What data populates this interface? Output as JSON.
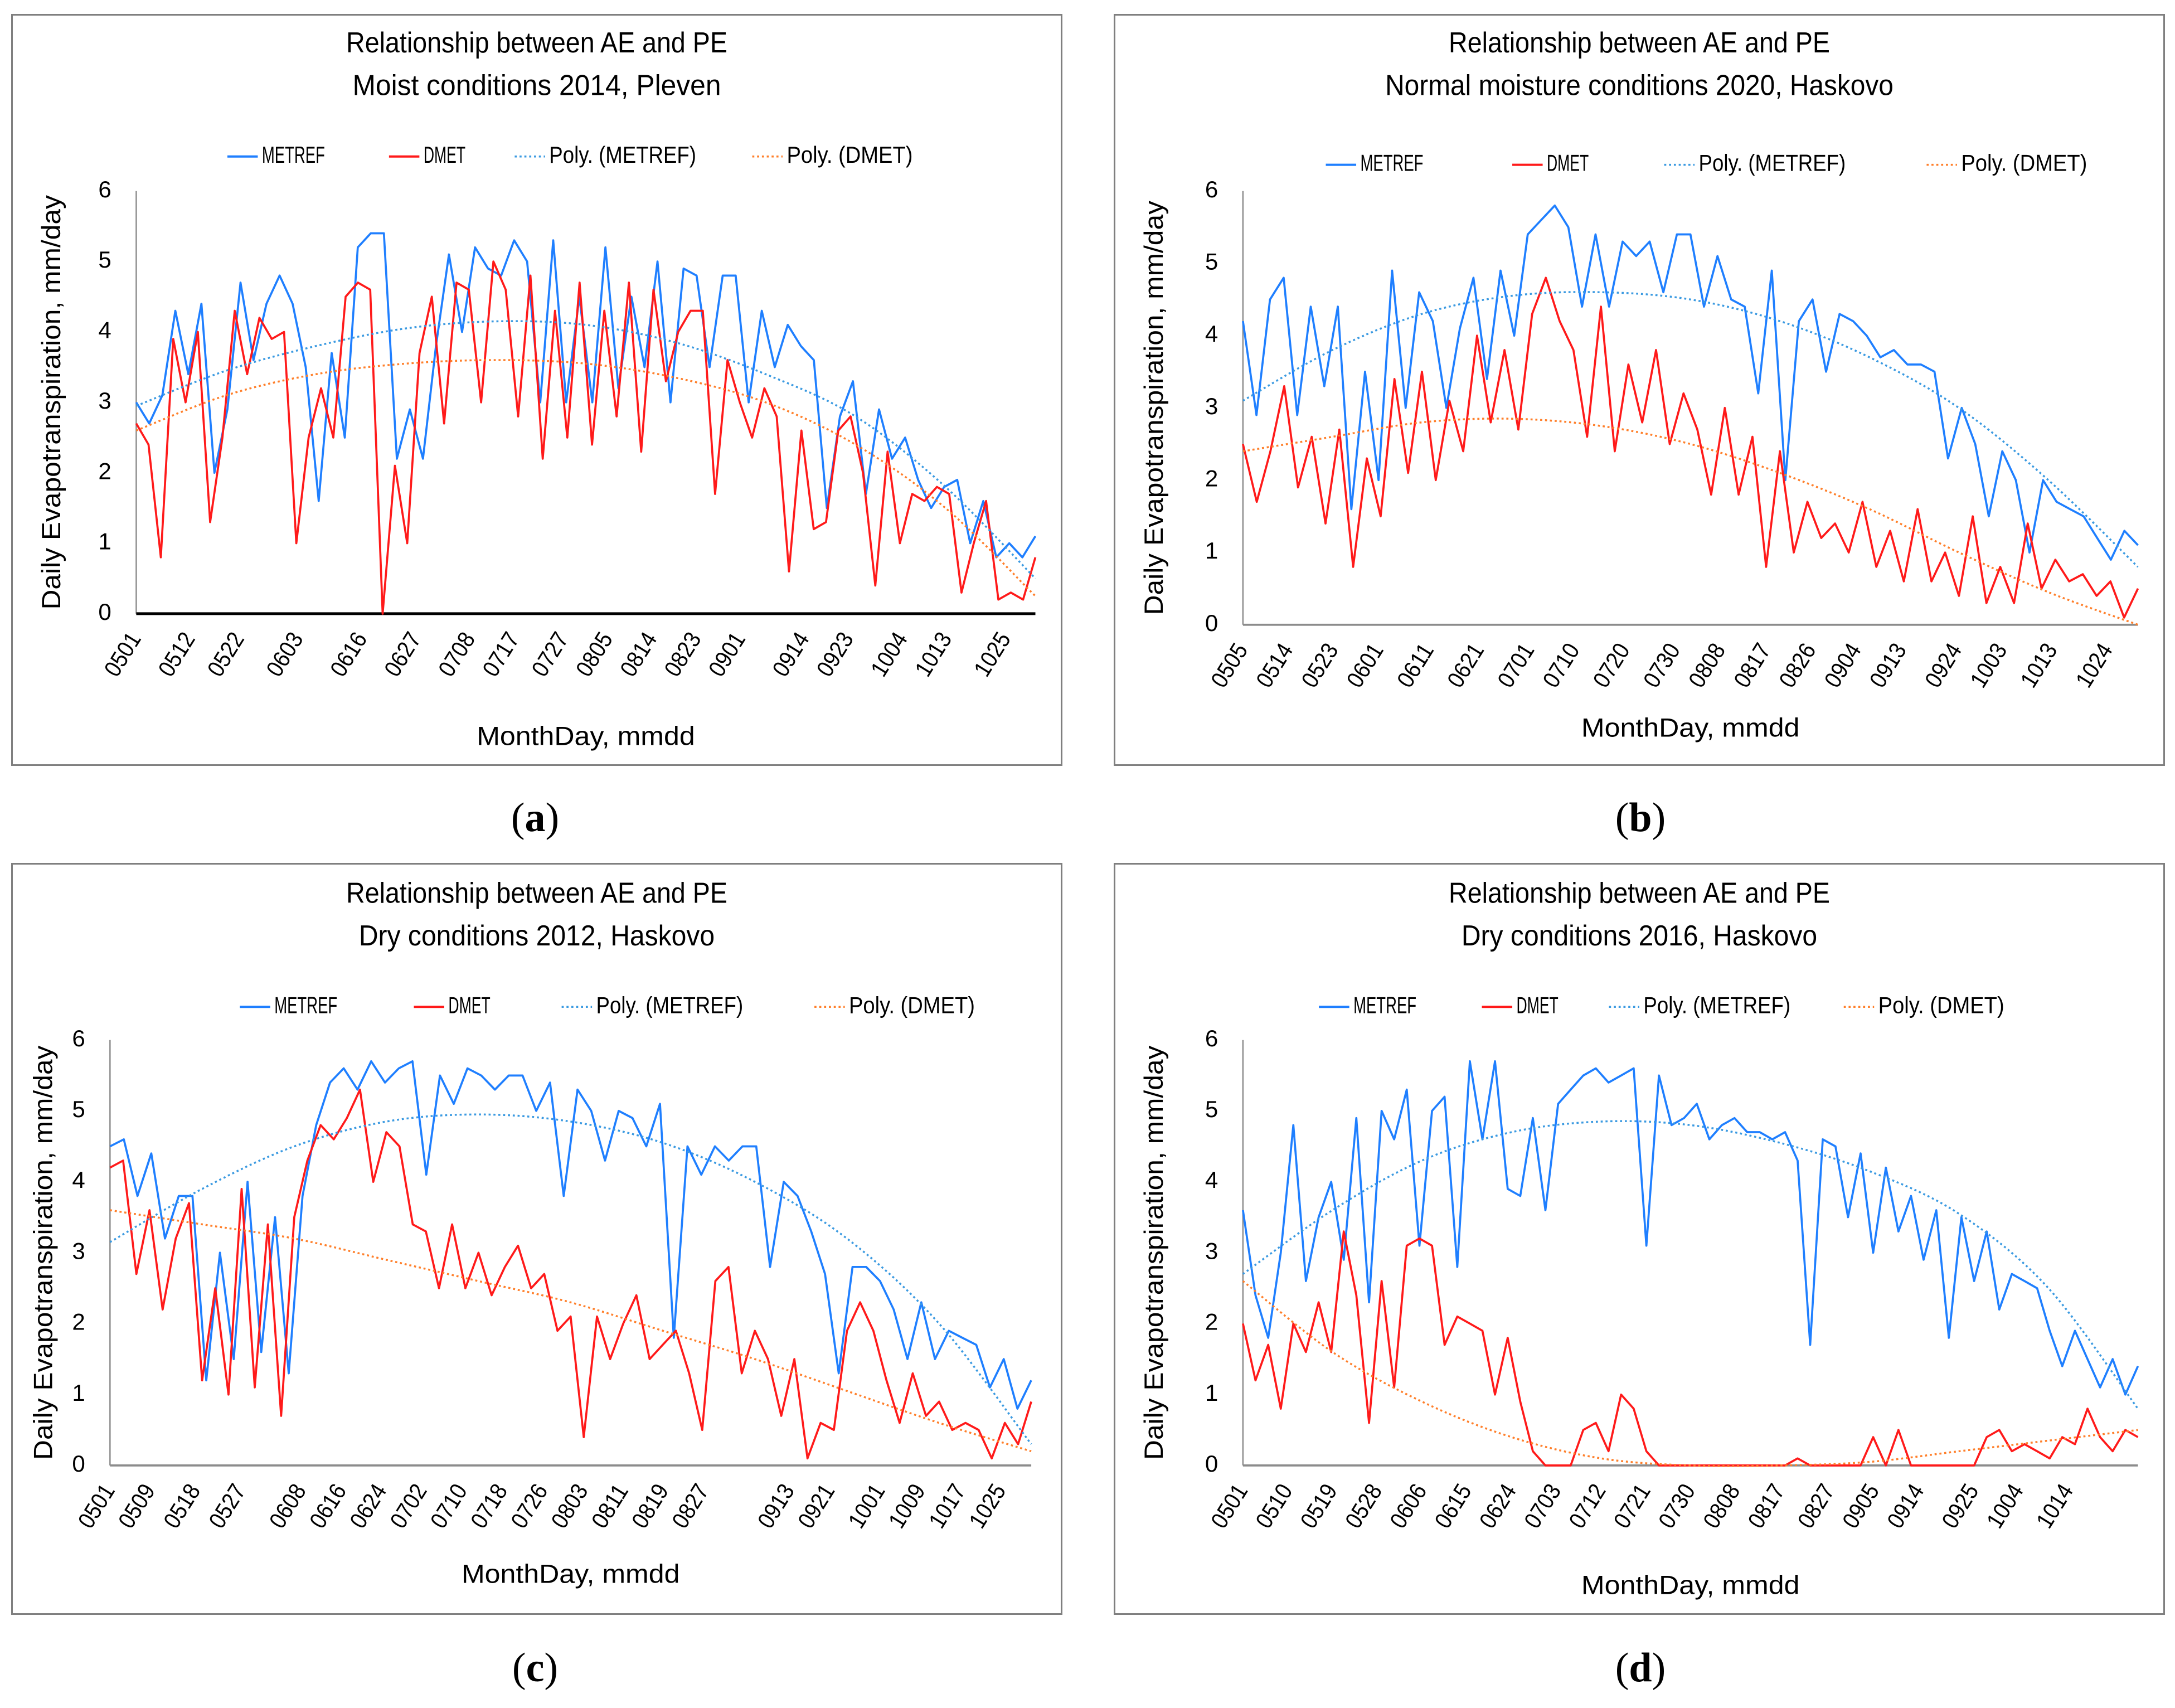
{
  "panel_labels": [
    "a",
    "b",
    "c",
    "d"
  ],
  "chart_data": [
    {
      "type": "line",
      "title": [
        "Relationship between AE and PE",
        "Moist conditions 2014, Pleven"
      ],
      "xlabel": "MonthDay, mmdd",
      "ylabel": "Daily Evapotranspiration, mm/day",
      "ylim": [
        0,
        6
      ],
      "yticks": [
        "0",
        "1",
        "2",
        "3",
        "4",
        "5",
        "6"
      ],
      "x_range": [
        "0501",
        "1031"
      ],
      "xticks": [
        "0501",
        "0512",
        "0522",
        "0603",
        "0616",
        "0627",
        "0708",
        "0717",
        "0727",
        "0805",
        "0814",
        "0823",
        "0901",
        "0914",
        "0923",
        "1004",
        "1013",
        "1025"
      ],
      "legend": [
        "METREF",
        "DMET",
        "Poly. (METREF)",
        "Poly. (DMET)"
      ],
      "colors": {
        "metref": "#1f7fff",
        "dmet": "#ff1a1a",
        "poly_metref": "#3b9ae1",
        "poly_dmet": "#ff7f2a"
      },
      "series": [
        {
          "name": "METREF",
          "values": [
            3.0,
            2.7,
            3.1,
            4.3,
            3.4,
            4.4,
            2.0,
            2.9,
            4.7,
            3.6,
            4.4,
            4.8,
            4.4,
            3.5,
            1.6,
            3.7,
            2.5,
            5.2,
            5.4,
            5.4,
            2.2,
            2.9,
            2.2,
            3.8,
            5.1,
            4.0,
            5.2,
            4.9,
            4.8,
            5.3,
            5.0,
            3.0,
            5.3,
            3.0,
            4.5,
            3.0,
            5.2,
            3.2,
            4.5,
            3.5,
            5.0,
            3.0,
            4.9,
            4.8,
            3.5,
            4.8,
            4.8,
            3.0,
            4.3,
            3.5,
            4.1,
            3.8,
            3.6,
            1.5,
            2.8,
            3.3,
            1.7,
            2.9,
            2.2,
            2.5,
            1.9,
            1.5,
            1.8,
            1.9,
            1.0,
            1.6,
            0.8,
            1.0,
            0.8,
            1.1
          ]
        },
        {
          "name": "DMET",
          "values": [
            2.7,
            2.4,
            0.8,
            3.9,
            3.0,
            4.0,
            1.3,
            2.5,
            4.3,
            3.4,
            4.2,
            3.9,
            4.0,
            1.0,
            2.5,
            3.2,
            2.5,
            4.5,
            4.7,
            4.6,
            0.0,
            2.1,
            1.0,
            3.7,
            4.5,
            2.7,
            4.7,
            4.6,
            3.0,
            5.0,
            4.6,
            2.8,
            4.8,
            2.2,
            4.3,
            2.5,
            4.7,
            2.4,
            4.3,
            2.8,
            4.7,
            2.3,
            4.6,
            3.3,
            4.0,
            4.3,
            4.3,
            1.7,
            3.6,
            3.0,
            2.5,
            3.2,
            2.8,
            0.6,
            2.6,
            1.2,
            1.3,
            2.6,
            2.8,
            2.0,
            0.4,
            2.3,
            1.0,
            1.7,
            1.6,
            1.8,
            1.7,
            0.3,
            1.0,
            1.6,
            0.2,
            0.3,
            0.2,
            0.8
          ]
        },
        {
          "name": "Poly. (METREF)",
          "values": [
            2.95,
            3.45,
            3.8,
            4.05,
            4.15,
            4.1,
            3.85,
            3.4,
            2.8,
            1.8,
            0.5
          ]
        },
        {
          "name": "Poly. (DMET)",
          "values": [
            2.6,
            3.1,
            3.4,
            3.55,
            3.6,
            3.55,
            3.35,
            3.0,
            2.4,
            1.5,
            0.25
          ]
        }
      ]
    },
    {
      "type": "line",
      "title": [
        "Relationship between AE and PE",
        "Normal moisture conditions 2020, Haskovo"
      ],
      "xlabel": "MonthDay, mmdd",
      "ylabel": "Daily Evapotranspiration, mm/day",
      "ylim": [
        0,
        6
      ],
      "yticks": [
        "0",
        "1",
        "2",
        "3",
        "4",
        "5",
        "6"
      ],
      "x_range": [
        "0505",
        "1030"
      ],
      "xticks": [
        "0505",
        "0514",
        "0523",
        "0601",
        "0611",
        "0621",
        "0701",
        "0710",
        "0720",
        "0730",
        "0808",
        "0817",
        "0826",
        "0904",
        "0913",
        "0924",
        "1003",
        "1013",
        "1024"
      ],
      "legend": [
        "METREF",
        "DMET",
        "Poly. (METREF)",
        "Poly. (DMET)"
      ],
      "colors": {
        "metref": "#1f7fff",
        "dmet": "#ff1a1a",
        "poly_metref": "#3b9ae1",
        "poly_dmet": "#ff7f2a"
      },
      "series": [
        {
          "name": "METREF",
          "values": [
            4.2,
            2.9,
            4.5,
            4.8,
            2.9,
            4.4,
            3.3,
            4.4,
            1.6,
            3.5,
            2.0,
            4.9,
            3.0,
            4.6,
            4.2,
            3.0,
            4.1,
            4.8,
            3.4,
            4.9,
            4.0,
            5.4,
            5.6,
            5.8,
            5.5,
            4.4,
            5.4,
            4.4,
            5.3,
            5.1,
            5.3,
            4.6,
            5.4,
            5.4,
            4.4,
            5.1,
            4.5,
            4.4,
            3.2,
            4.9,
            2.0,
            4.2,
            4.5,
            3.5,
            4.3,
            4.2,
            4.0,
            3.7,
            3.8,
            3.6,
            3.6,
            3.5,
            2.3,
            3.0,
            2.5,
            1.5,
            2.4,
            2.0,
            1.0,
            2.0,
            1.7,
            1.6,
            1.5,
            1.2,
            0.9,
            1.3,
            1.1
          ]
        },
        {
          "name": "DMET",
          "values": [
            2.5,
            1.7,
            2.4,
            3.3,
            1.9,
            2.6,
            1.4,
            2.7,
            0.8,
            2.3,
            1.5,
            3.4,
            2.1,
            3.5,
            2.0,
            3.1,
            2.4,
            4.0,
            2.8,
            3.8,
            2.7,
            4.3,
            4.8,
            4.2,
            3.8,
            2.6,
            4.4,
            2.4,
            3.6,
            2.8,
            3.8,
            2.5,
            3.2,
            2.7,
            1.8,
            3.0,
            1.8,
            2.6,
            0.8,
            2.4,
            1.0,
            1.7,
            1.2,
            1.4,
            1.0,
            1.7,
            0.8,
            1.3,
            0.6,
            1.6,
            0.6,
            1.0,
            0.4,
            1.5,
            0.3,
            0.8,
            0.3,
            1.4,
            0.5,
            0.9,
            0.6,
            0.7,
            0.4,
            0.6,
            0.1,
            0.5
          ]
        },
        {
          "name": "Poly. (METREF)",
          "values": [
            3.1,
            3.8,
            4.3,
            4.55,
            4.6,
            4.5,
            4.2,
            3.7,
            3.0,
            2.0,
            0.8
          ]
        },
        {
          "name": "Poly. (DMET)",
          "values": [
            2.4,
            2.6,
            2.8,
            2.85,
            2.75,
            2.5,
            2.1,
            1.6,
            1.0,
            0.45,
            0
          ]
        }
      ]
    },
    {
      "type": "line",
      "title": [
        "Relationship between AE and PE",
        "Dry conditions 2012, Haskovo"
      ],
      "xlabel": "MonthDay, mmdd",
      "ylabel": "Daily Evapotranspiration, mm/day",
      "ylim": [
        0,
        6
      ],
      "yticks": [
        "0",
        "1",
        "2",
        "3",
        "4",
        "5",
        "6"
      ],
      "x_range": [
        "0501",
        "1031"
      ],
      "xticks": [
        "0501",
        "0509",
        "0518",
        "0527",
        "0608",
        "0616",
        "0624",
        "0702",
        "0710",
        "0718",
        "0726",
        "0803",
        "0811",
        "0819",
        "0827",
        "0913",
        "0921",
        "1001",
        "1009",
        "1017",
        "1025"
      ],
      "legend": [
        "METREF",
        "DMET",
        "Poly. (METREF)",
        "Poly. (DMET)"
      ],
      "colors": {
        "metref": "#1f7fff",
        "dmet": "#ff1a1a",
        "poly_metref": "#3b9ae1",
        "poly_dmet": "#ff7f2a"
      },
      "series": [
        {
          "name": "METREF",
          "values": [
            4.5,
            4.6,
            3.8,
            4.4,
            3.2,
            3.8,
            3.8,
            1.2,
            3.0,
            1.5,
            4.0,
            1.6,
            3.5,
            1.3,
            3.8,
            4.8,
            5.4,
            5.6,
            5.3,
            5.7,
            5.4,
            5.6,
            5.7,
            4.1,
            5.5,
            5.1,
            5.6,
            5.5,
            5.3,
            5.5,
            5.5,
            5.0,
            5.4,
            3.8,
            5.3,
            5.0,
            4.3,
            5.0,
            4.9,
            4.5,
            5.1,
            1.8,
            4.5,
            4.1,
            4.5,
            4.3,
            4.5,
            4.5,
            2.8,
            4.0,
            3.8,
            3.3,
            2.7,
            1.3,
            2.8,
            2.8,
            2.6,
            2.2,
            1.5,
            2.3,
            1.5,
            1.9,
            1.8,
            1.7,
            1.1,
            1.5,
            0.8,
            1.2
          ]
        },
        {
          "name": "DMET",
          "values": [
            4.2,
            4.3,
            2.7,
            3.6,
            2.2,
            3.2,
            3.7,
            1.2,
            2.5,
            1.0,
            3.9,
            1.1,
            3.4,
            0.7,
            3.5,
            4.3,
            4.8,
            4.6,
            4.9,
            5.3,
            4.0,
            4.7,
            4.5,
            3.4,
            3.3,
            2.5,
            3.4,
            2.5,
            3.0,
            2.4,
            2.8,
            3.1,
            2.5,
            2.7,
            1.9,
            2.1,
            0.4,
            2.1,
            1.5,
            2.0,
            2.4,
            1.5,
            1.7,
            1.9,
            1.3,
            0.5,
            2.6,
            2.8,
            1.3,
            1.9,
            1.5,
            0.7,
            1.5,
            0.1,
            0.6,
            0.5,
            1.9,
            2.3,
            1.9,
            1.2,
            0.6,
            1.3,
            0.7,
            0.9,
            0.5,
            0.6,
            0.5,
            0.1,
            0.6,
            0.3,
            0.9
          ]
        },
        {
          "name": "Poly. (METREF)",
          "values": [
            3.15,
            3.9,
            4.5,
            4.85,
            4.95,
            4.85,
            4.55,
            4.0,
            3.2,
            2.0,
            0.3
          ]
        },
        {
          "name": "Poly. (DMET)",
          "values": [
            3.6,
            3.4,
            3.2,
            2.9,
            2.6,
            2.3,
            1.9,
            1.5,
            1.05,
            0.6,
            0.2
          ]
        }
      ]
    },
    {
      "type": "line",
      "title": [
        "Relationship between AE and PE",
        "Dry conditions 2016, Haskovo"
      ],
      "xlabel": "MonthDay, mmdd",
      "ylabel": "Daily Evapotranspiration, mm/day",
      "ylim": [
        0,
        6
      ],
      "yticks": [
        "0",
        "1",
        "2",
        "3",
        "4",
        "5",
        "6"
      ],
      "x_range": [
        "0501",
        "1028"
      ],
      "xticks": [
        "0501",
        "0510",
        "0519",
        "0528",
        "0606",
        "0615",
        "0624",
        "0703",
        "0712",
        "0721",
        "0730",
        "0808",
        "0817",
        "0827",
        "0905",
        "0914",
        "0925",
        "1004",
        "1014"
      ],
      "legend": [
        "METREF",
        "DMET",
        "Poly. (METREF)",
        "Poly. (DMET)"
      ],
      "colors": {
        "metref": "#1f7fff",
        "dmet": "#ff1a1a",
        "poly_metref": "#3b9ae1",
        "poly_dmet": "#ff7f2a"
      },
      "series": [
        {
          "name": "METREF",
          "values": [
            3.6,
            2.4,
            1.8,
            3.0,
            4.8,
            2.6,
            3.5,
            4.0,
            2.9,
            4.9,
            2.3,
            5.0,
            4.6,
            5.3,
            3.1,
            5.0,
            5.2,
            2.8,
            5.7,
            4.6,
            5.7,
            3.9,
            3.8,
            4.9,
            3.6,
            5.1,
            5.3,
            5.5,
            5.6,
            5.4,
            5.5,
            5.6,
            3.1,
            5.5,
            4.8,
            4.9,
            5.1,
            4.6,
            4.8,
            4.9,
            4.7,
            4.7,
            4.6,
            4.7,
            4.3,
            1.7,
            4.6,
            4.5,
            3.5,
            4.4,
            3.0,
            4.2,
            3.3,
            3.8,
            2.9,
            3.6,
            1.8,
            3.5,
            2.6,
            3.3,
            2.2,
            2.7,
            2.6,
            2.5,
            1.9,
            1.4,
            1.9,
            1.5,
            1.1,
            1.5,
            1.0,
            1.4
          ]
        },
        {
          "name": "DMET",
          "values": [
            2.0,
            1.2,
            1.7,
            0.8,
            2.0,
            1.6,
            2.3,
            1.6,
            3.3,
            2.4,
            0.6,
            2.6,
            1.1,
            3.1,
            3.2,
            3.1,
            1.7,
            2.1,
            2.0,
            1.9,
            1.0,
            1.8,
            0.9,
            0.2,
            0,
            0,
            0,
            0.5,
            0.6,
            0.2,
            1.0,
            0.8,
            0.2,
            0,
            0,
            0,
            0,
            0,
            0,
            0,
            0,
            0,
            0,
            0,
            0.1,
            0,
            0,
            0,
            0,
            0,
            0.4,
            0,
            0.5,
            0,
            0,
            0,
            0,
            0,
            0,
            0.4,
            0.5,
            0.2,
            0.3,
            0.2,
            0.1,
            0.4,
            0.3,
            0.8,
            0.4,
            0.2,
            0.5,
            0.4
          ]
        },
        {
          "name": "Poly. (METREF)",
          "values": [
            2.7,
            3.6,
            4.3,
            4.7,
            4.85,
            4.8,
            4.55,
            4.15,
            3.55,
            2.5,
            0.8
          ]
        },
        {
          "name": "Poly. (DMET)",
          "values": [
            2.6,
            1.6,
            0.9,
            0.4,
            0.1,
            0.0,
            0.0,
            0.05,
            0.2,
            0.35,
            0.5
          ]
        }
      ]
    }
  ]
}
